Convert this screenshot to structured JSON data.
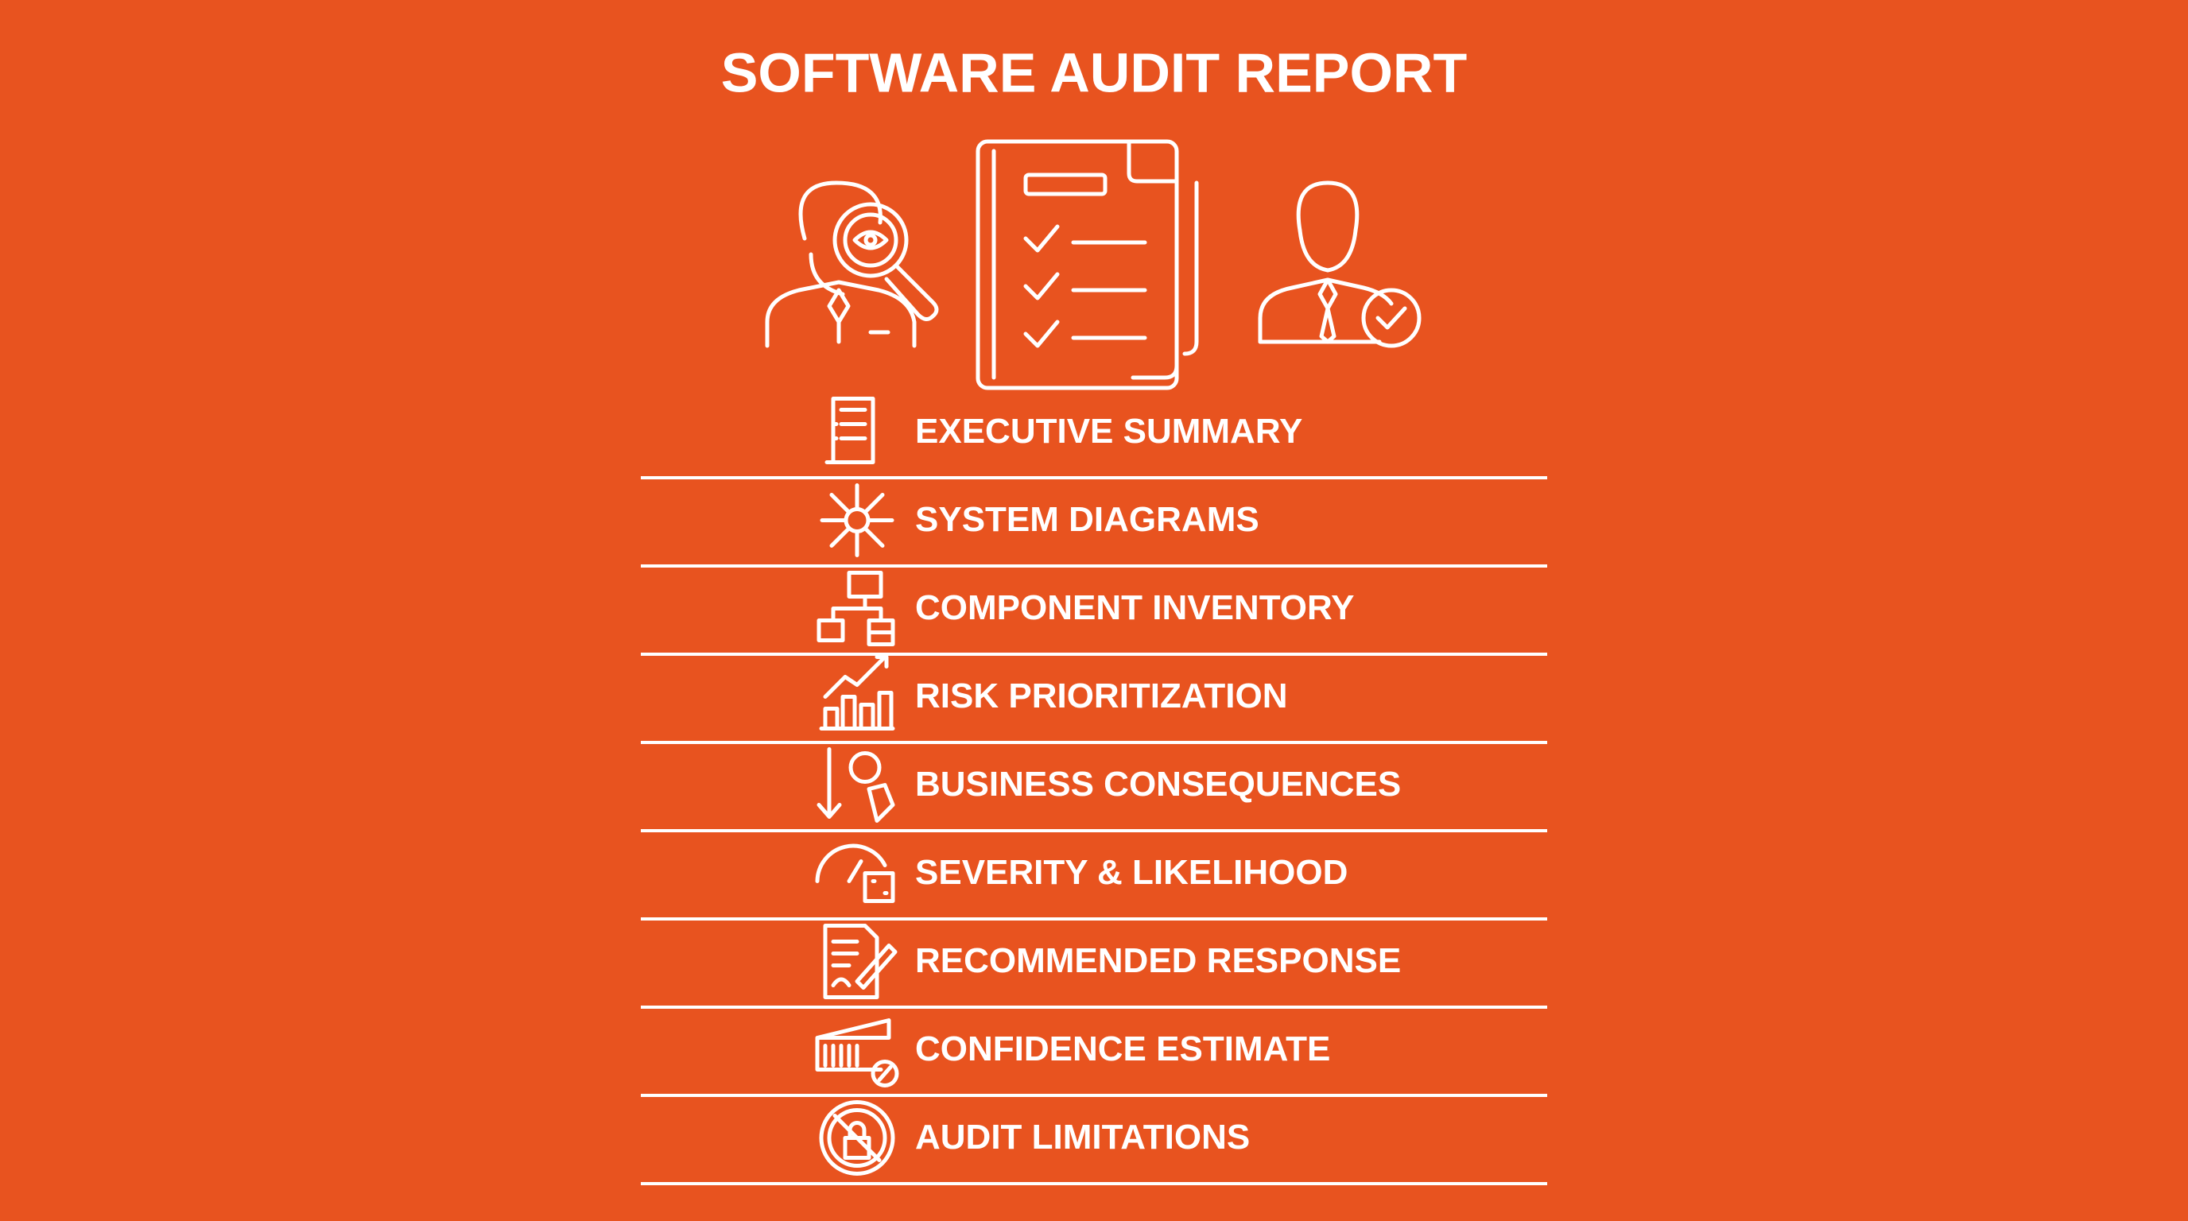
{
  "header": {
    "title": "SOFTWARE AUDIT REPORT"
  },
  "items": [
    "EXECUTIVE SUMMARY",
    "SYSTEM DIAGRAMS",
    "COMPONENT INVENTORY",
    "RISK PRIORITIZATION",
    "BUSINESS CONSEQUENCES",
    "SEVERITY & LIKELIHOOD",
    "RECOMMENDED RESPONSE",
    "CONFIDENCE ESTIMATE",
    "AUDIT LIMITATIONS"
  ]
}
